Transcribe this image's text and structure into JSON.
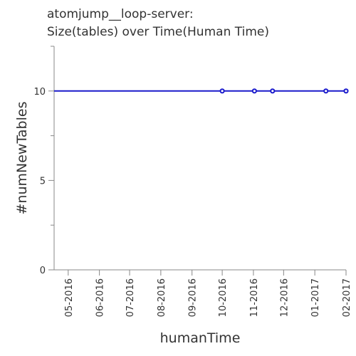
{
  "chart_data": {
    "type": "line",
    "title_lines": [
      "atomjump__loop-server:",
      "Size(tables) over Time(Human Time)"
    ],
    "xlabel": "humanTime",
    "ylabel": "#numNewTables",
    "x_ticks": [
      "05-2016",
      "06-2016",
      "07-2016",
      "08-2016",
      "09-2016",
      "10-2016",
      "11-2016",
      "12-2016",
      "01-2017",
      "02-2017"
    ],
    "xlim": [
      "2016-04-17",
      "2017-02-01"
    ],
    "ylim": [
      0,
      12.5
    ],
    "y_ticks": [
      0,
      5,
      10
    ],
    "grid": false,
    "line_color": "#1a1acc",
    "series": [
      {
        "points": [
          {
            "x": "2016-04-17",
            "y": 10
          },
          {
            "x": "2016-10-01",
            "y": 10
          },
          {
            "x": "2016-11-02",
            "y": 10
          },
          {
            "x": "2016-11-20",
            "y": 10
          },
          {
            "x": "2017-01-12",
            "y": 10
          },
          {
            "x": "2017-02-01",
            "y": 10
          }
        ]
      }
    ]
  }
}
